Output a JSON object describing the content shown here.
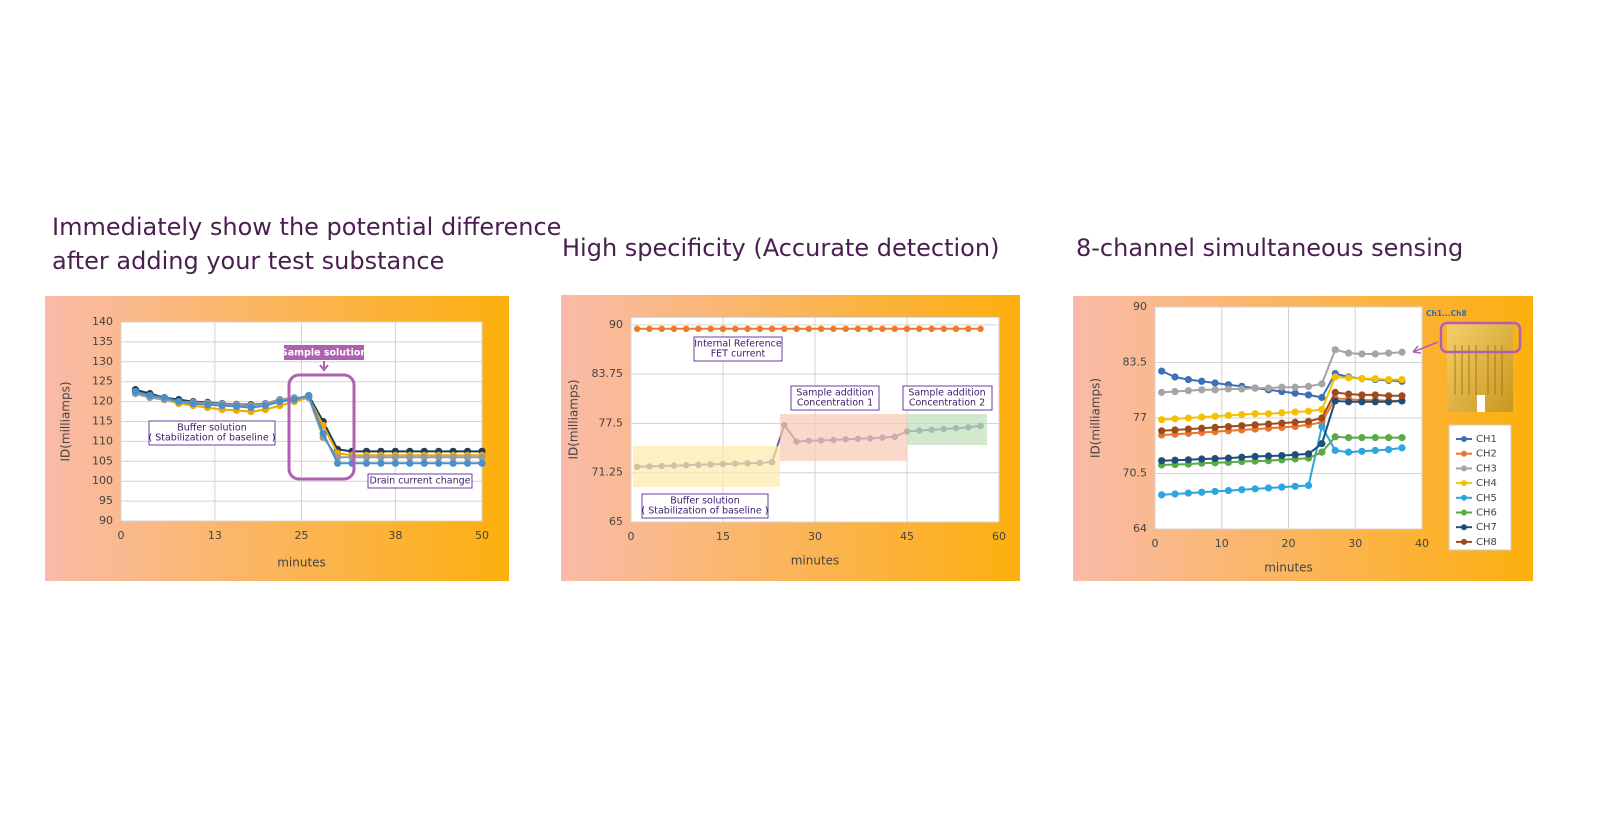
{
  "chart_data": [
    {
      "type": "line",
      "title": [
        "Immediately show the potential difference",
        "after adding your test substance"
      ],
      "x_label": "minutes",
      "y_label": "ID(milliamps)",
      "xlim": [
        0,
        50
      ],
      "xticks": [
        0,
        13,
        25,
        38,
        50
      ],
      "ylim": [
        90,
        140
      ],
      "yticks": [
        90,
        95,
        100,
        105,
        110,
        115,
        120,
        125,
        130,
        135,
        140
      ],
      "grid": true,
      "annotations": [
        "Sample solution",
        [
          "Buffer solution",
          "( Stabilization of baseline )"
        ],
        "Drain current change"
      ],
      "x": [
        2,
        4,
        6,
        8,
        10,
        12,
        14,
        16,
        18,
        20,
        22,
        24,
        26,
        28,
        30,
        32,
        34,
        36,
        38,
        40,
        42,
        44,
        46,
        48,
        50
      ],
      "series": [
        {
          "color": "#1f3b5a",
          "values": [
            123,
            122,
            121,
            120.5,
            120,
            119.8,
            119.5,
            119.3,
            119.2,
            119.5,
            120.5,
            120.5,
            121.5,
            115,
            108,
            107.5,
            107.5,
            107.5,
            107.5,
            107.5,
            107.5,
            107.5,
            107.5,
            107.5,
            107.5
          ]
        },
        {
          "color": "#f2a900",
          "values": [
            122.5,
            121.5,
            120.5,
            119.5,
            119,
            118.5,
            118,
            117.8,
            117.5,
            118,
            119,
            120,
            121,
            114,
            107,
            106.5,
            106.5,
            106.5,
            106.5,
            106.5,
            106.5,
            106.5,
            106.5,
            106.5,
            106.5
          ]
        },
        {
          "color": "#9a9a9a",
          "values": [
            122,
            121,
            120.5,
            120,
            119.8,
            119.6,
            119.4,
            119.2,
            119,
            119.5,
            120.5,
            121,
            121,
            111,
            106,
            106,
            106,
            106,
            106,
            106,
            106,
            106,
            106,
            106,
            106
          ]
        },
        {
          "color": "#4a90c8",
          "values": [
            122.5,
            121.5,
            121,
            120,
            119.5,
            119.2,
            119,
            118.8,
            118.5,
            119,
            120,
            120.5,
            121.5,
            112,
            104.5,
            104.5,
            104.5,
            104.5,
            104.5,
            104.5,
            104.5,
            104.5,
            104.5,
            104.5,
            104.5
          ]
        }
      ]
    },
    {
      "type": "line",
      "title": "High specificity (Accurate detection)",
      "x_label": "minutes",
      "y_label": "ID(milliamps)",
      "xlim": [
        0,
        60
      ],
      "xticks": [
        0,
        15,
        30,
        45,
        60
      ],
      "ylim": [
        65,
        91
      ],
      "yticks": [
        65,
        71.25,
        77.5,
        83.75,
        90
      ],
      "grid": true,
      "annotations": [
        [
          "Internal Reference",
          "FET current"
        ],
        [
          "Sample addition",
          "Concentration 1"
        ],
        [
          "Sample addition",
          "Concentration 2"
        ],
        [
          "Buffer solution",
          "( Stabilization of baseline )"
        ]
      ],
      "x": [
        1,
        3,
        5,
        7,
        9,
        11,
        13,
        15,
        17,
        19,
        21,
        23,
        25,
        27,
        29,
        31,
        33,
        35,
        37,
        39,
        41,
        43,
        45,
        47,
        49,
        51,
        53,
        55,
        57
      ],
      "series": [
        {
          "color": "#ee7a2e",
          "values": [
            89.5,
            89.5,
            89.5,
            89.5,
            89.5,
            89.5,
            89.5,
            89.5,
            89.5,
            89.5,
            89.5,
            89.5,
            89.5,
            89.5,
            89.5,
            89.5,
            89.5,
            89.5,
            89.5,
            89.5,
            89.5,
            89.5,
            89.5,
            89.5,
            89.5,
            89.5,
            89.5,
            89.5,
            89.5
          ]
        },
        {
          "color": "#5a6aa0",
          "values": [
            72,
            72.05,
            72.1,
            72.15,
            72.2,
            72.25,
            72.3,
            72.35,
            72.4,
            72.45,
            72.5,
            72.6,
            77.3,
            75.2,
            75.3,
            75.35,
            75.4,
            75.5,
            75.55,
            75.6,
            75.7,
            75.8,
            76.5,
            76.6,
            76.7,
            76.8,
            76.9,
            77,
            77.2
          ]
        }
      ]
    },
    {
      "type": "line",
      "title": "8-channel simultaneous sensing",
      "x_label": "minutes",
      "y_label": "ID(milliamps)",
      "inset_label": "Ch1...Ch8",
      "xlim": [
        0,
        40
      ],
      "xticks": [
        0,
        10,
        20,
        30,
        40
      ],
      "ylim": [
        64,
        90
      ],
      "yticks": [
        64,
        70.5,
        77,
        83.5,
        90
      ],
      "grid": true,
      "legend": "right",
      "x": [
        1,
        3,
        5,
        7,
        9,
        11,
        13,
        15,
        17,
        19,
        21,
        23,
        25,
        27,
        29,
        31,
        33,
        35,
        37
      ],
      "series": [
        {
          "name": "CH1",
          "color": "#3c6fb7",
          "values": [
            82.5,
            81.8,
            81.5,
            81.3,
            81.1,
            80.9,
            80.7,
            80.5,
            80.3,
            80.1,
            79.9,
            79.7,
            79.4,
            82.2,
            81.8,
            81.6,
            81.5,
            81.4,
            81.3
          ]
        },
        {
          "name": "CH2",
          "color": "#e8762c",
          "values": [
            75,
            75.1,
            75.2,
            75.3,
            75.4,
            75.5,
            75.6,
            75.7,
            75.8,
            75.9,
            76,
            76.2,
            76.5,
            79.3,
            79.2,
            79.1,
            79.1,
            79,
            79
          ]
        },
        {
          "name": "CH3",
          "color": "#a5a5a5",
          "values": [
            80,
            80.1,
            80.2,
            80.3,
            80.3,
            80.4,
            80.4,
            80.5,
            80.5,
            80.6,
            80.6,
            80.7,
            81,
            85,
            84.6,
            84.5,
            84.5,
            84.6,
            84.7
          ]
        },
        {
          "name": "CH4",
          "color": "#f5c000",
          "values": [
            76.8,
            76.9,
            77,
            77.1,
            77.2,
            77.3,
            77.4,
            77.5,
            77.5,
            77.6,
            77.7,
            77.8,
            78,
            81.8,
            81.7,
            81.6,
            81.6,
            81.5,
            81.5
          ]
        },
        {
          "name": "CH5",
          "color": "#2ba6df",
          "values": [
            68,
            68.1,
            68.2,
            68.3,
            68.4,
            68.5,
            68.6,
            68.7,
            68.8,
            68.9,
            69,
            69.1,
            76,
            73.2,
            73,
            73.1,
            73.2,
            73.3,
            73.5
          ]
        },
        {
          "name": "CH6",
          "color": "#5aaa46",
          "values": [
            71.5,
            71.55,
            71.6,
            71.7,
            71.75,
            71.8,
            71.9,
            71.95,
            72,
            72.1,
            72.2,
            72.3,
            73,
            74.8,
            74.7,
            74.7,
            74.7,
            74.7,
            74.7
          ]
        },
        {
          "name": "CH7",
          "color": "#1f4e79",
          "values": [
            72,
            72.05,
            72.1,
            72.2,
            72.25,
            72.3,
            72.4,
            72.5,
            72.55,
            72.6,
            72.7,
            72.8,
            74,
            79,
            78.9,
            78.9,
            78.9,
            78.9,
            79
          ]
        },
        {
          "name": "CH8",
          "color": "#9e4a1e",
          "values": [
            75.5,
            75.6,
            75.7,
            75.8,
            75.9,
            76,
            76.1,
            76.2,
            76.3,
            76.4,
            76.5,
            76.6,
            77,
            80,
            79.8,
            79.7,
            79.7,
            79.6,
            79.6
          ]
        }
      ]
    }
  ]
}
